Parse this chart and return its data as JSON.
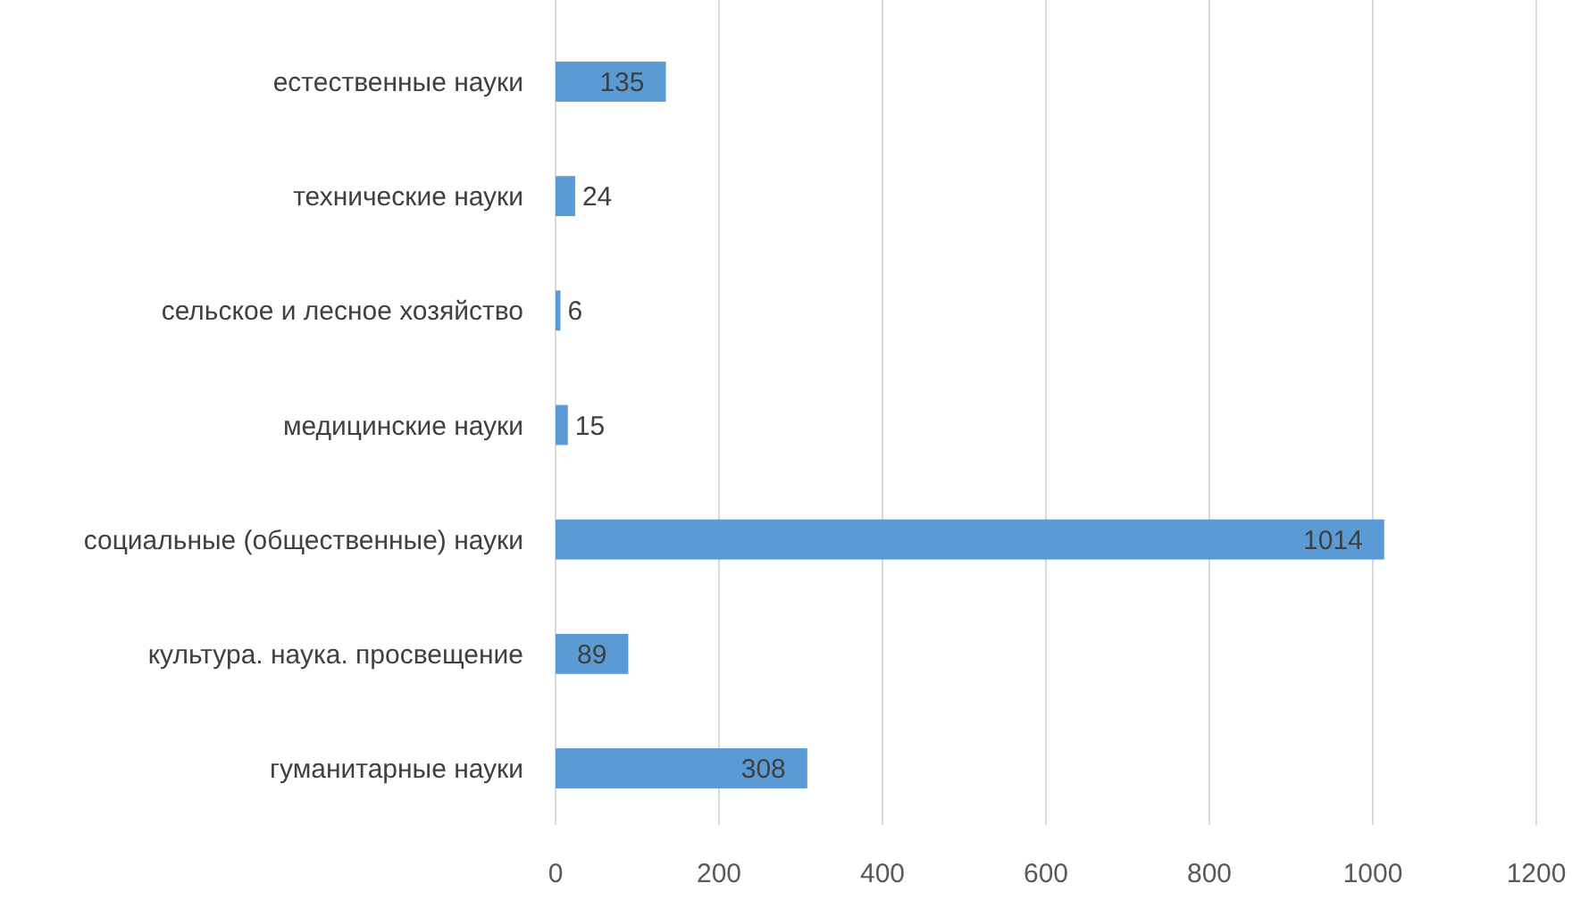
{
  "chart_data": {
    "type": "bar",
    "orientation": "horizontal",
    "categories": [
      "естественные науки",
      "технические науки",
      "сельское и лесное хозяйство",
      "медицинские науки",
      "социальные (общественные) науки",
      "культура. наука. просвещение",
      "гуманитарные науки"
    ],
    "values": [
      135,
      24,
      6,
      15,
      1014,
      89,
      308
    ],
    "color": "#5b9bd5",
    "xlim": [
      0,
      1200
    ],
    "xticks": [
      0,
      200,
      400,
      600,
      800,
      1000,
      1200
    ],
    "grid": "x",
    "data_labels": true
  }
}
